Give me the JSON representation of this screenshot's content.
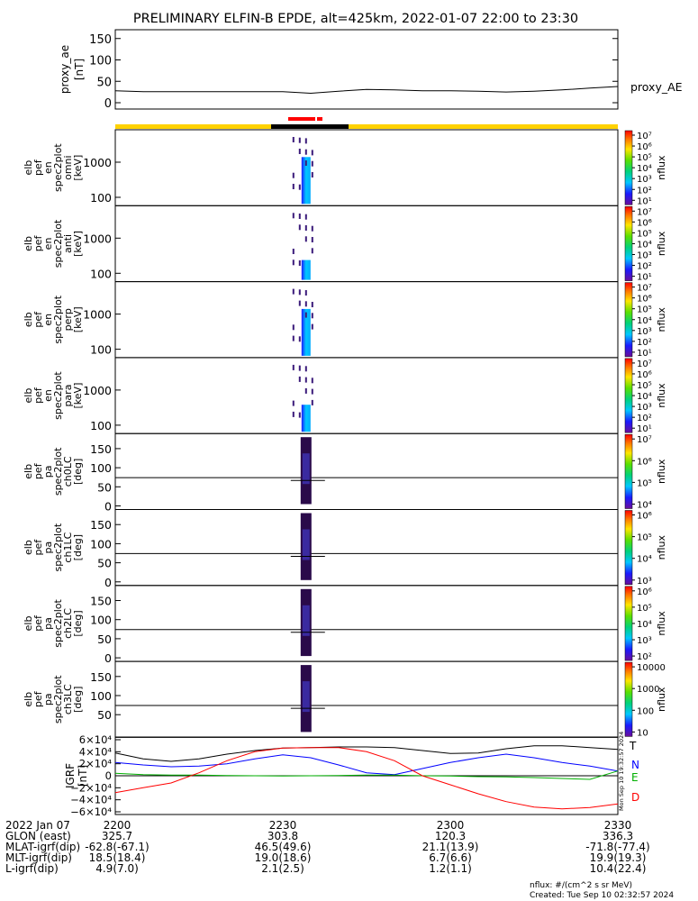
{
  "title": "PRELIMINARY ELFIN-B EPDE, alt=425km, 2022-01-07 22:00 to 23:30",
  "colors": {
    "frame": "#000000",
    "yellow_bar": "#ffd200",
    "black_bar": "#000000",
    "red_bar": "#ff0000",
    "grf_T": "#000000",
    "grf_N": "#0000ff",
    "grf_E": "#00b000",
    "grf_D": "#ff0000"
  },
  "chart_data": [
    {
      "type": "line",
      "panel": "proxy_ae",
      "ylabel": "proxy_ae [nT]",
      "yticks": [
        "150",
        "100",
        "50",
        "0"
      ],
      "ylim": [
        0,
        160
      ],
      "series_label": "proxy_AE",
      "x": [
        2200,
        2205,
        2210,
        2215,
        2220,
        2225,
        2230,
        2235,
        2240,
        2245,
        2250,
        2255,
        2300,
        2305,
        2310,
        2315,
        2320,
        2325,
        2330
      ],
      "values": [
        28,
        26,
        26,
        26,
        26,
        26,
        26,
        22,
        27,
        31,
        30,
        28,
        28,
        27,
        25,
        27,
        30,
        34,
        38
      ]
    },
    {
      "type": "heatmap",
      "panel": "spec_omni",
      "ylabel": [
        "elb",
        "pef",
        "en",
        "spec2plot",
        "omni",
        "[keV]"
      ],
      "yticks": [
        "1000",
        "100"
      ],
      "colorbar_title": "nflux",
      "colorbar_ticks": [
        "10^7",
        "10^6",
        "10^5",
        "10^4",
        "10^3",
        "10^2",
        "10^1"
      ]
    },
    {
      "type": "heatmap",
      "panel": "spec_anti",
      "ylabel": [
        "elb",
        "pef",
        "en",
        "spec2plot",
        "anti",
        "[keV]"
      ],
      "yticks": [
        "1000",
        "100"
      ],
      "colorbar_title": "nflux",
      "colorbar_ticks": [
        "10^7",
        "10^6",
        "10^5",
        "10^4",
        "10^3",
        "10^2",
        "10^1"
      ]
    },
    {
      "type": "heatmap",
      "panel": "spec_perp",
      "ylabel": [
        "elb",
        "pef",
        "en",
        "spec2plot",
        "perp",
        "[keV]"
      ],
      "yticks": [
        "1000",
        "100"
      ],
      "colorbar_title": "nflux",
      "colorbar_ticks": [
        "10^7",
        "10^6",
        "10^5",
        "10^4",
        "10^3",
        "10^2",
        "10^1"
      ]
    },
    {
      "type": "heatmap",
      "panel": "spec_para",
      "ylabel": [
        "elb",
        "pef",
        "en",
        "spec2plot",
        "para",
        "[keV]"
      ],
      "yticks": [
        "1000",
        "100"
      ],
      "colorbar_title": "nflux",
      "colorbar_ticks": [
        "10^7",
        "10^6",
        "10^5",
        "10^4",
        "10^3",
        "10^2",
        "10^1"
      ]
    },
    {
      "type": "heatmap",
      "panel": "pa_ch0LC",
      "ylabel": [
        "elb",
        "pef",
        "pa",
        "spec2plot",
        "ch0LC",
        "[deg]"
      ],
      "yticks": [
        "150",
        "100",
        "50",
        "0"
      ],
      "colorbar_title": "nflux",
      "colorbar_ticks": [
        "10^7",
        "10^6",
        "10^5",
        "10^4"
      ]
    },
    {
      "type": "heatmap",
      "panel": "pa_ch1LC",
      "ylabel": [
        "elb",
        "pef",
        "pa",
        "spec2plot",
        "ch1LC",
        "[deg]"
      ],
      "yticks": [
        "150",
        "100",
        "50",
        "0"
      ],
      "colorbar_title": "nflux",
      "colorbar_ticks": [
        "10^6",
        "10^5",
        "10^4",
        "10^3"
      ]
    },
    {
      "type": "heatmap",
      "panel": "pa_ch2LC",
      "ylabel": [
        "elb",
        "pef",
        "pa",
        "spec2plot",
        "ch2LC",
        "[deg]"
      ],
      "yticks": [
        "150",
        "100",
        "50",
        "0"
      ],
      "colorbar_title": "nflux",
      "colorbar_ticks": [
        "10^6",
        "10^5",
        "10^4",
        "10^3",
        "10^2"
      ]
    },
    {
      "type": "heatmap",
      "panel": "pa_ch3LC",
      "ylabel": [
        "elb",
        "pef",
        "pa",
        "spec2plot",
        "ch3LC",
        "[deg]"
      ],
      "yticks": [
        "150",
        "100",
        "50"
      ],
      "colorbar_title": "nflux",
      "colorbar_ticks": [
        "10000",
        "1000",
        "100",
        "10"
      ]
    },
    {
      "type": "line",
      "panel": "IGRF",
      "ylabel": "IGRF [nT]",
      "yticks": [
        "6×10⁴",
        "4×10⁴",
        "2×10⁴",
        "0",
        "−2×10⁴",
        "−4×10⁴",
        "−6×10⁴"
      ],
      "ylim": [
        -60000,
        60000
      ],
      "x": [
        2200,
        2205,
        2210,
        2215,
        2220,
        2225,
        2230,
        2235,
        2240,
        2245,
        2250,
        2255,
        2300,
        2305,
        2310,
        2315,
        2320,
        2325,
        2330
      ],
      "series": [
        {
          "name": "T",
          "values": [
            38000,
            28000,
            24000,
            28000,
            36000,
            42000,
            46000,
            47000,
            48000,
            48000,
            47000,
            42000,
            37000,
            38000,
            45000,
            50000,
            50000,
            47000,
            44000
          ]
        },
        {
          "name": "N",
          "values": [
            22000,
            18000,
            15000,
            16000,
            20000,
            28000,
            35000,
            30000,
            18000,
            5000,
            2000,
            12000,
            22000,
            30000,
            36000,
            30000,
            22000,
            16000,
            8000
          ]
        },
        {
          "name": "E",
          "values": [
            4000,
            2000,
            1000,
            1000,
            500,
            0,
            -500,
            0,
            500,
            1000,
            1000,
            0,
            -500,
            -1500,
            -2000,
            -3000,
            -4500,
            -6000,
            8000
          ]
        },
        {
          "name": "D",
          "values": [
            -28000,
            -20000,
            -12000,
            5000,
            25000,
            40000,
            46000,
            47000,
            47000,
            40000,
            25000,
            0,
            -15000,
            -30000,
            -43000,
            -52000,
            -55000,
            -53000,
            -47000
          ]
        }
      ],
      "side_note": "Mon Sep 10 19:32:57 2024"
    }
  ],
  "x_ticks": [
    "2200",
    "2230",
    "2300",
    "2330"
  ],
  "footer_rows": [
    {
      "label": "2022 Jan 07",
      "values": [
        "2200",
        "2230",
        "2300",
        "2330"
      ]
    },
    {
      "label": "GLON (east)",
      "values": [
        "325.7",
        "303.8",
        "120.3",
        "336.3"
      ]
    },
    {
      "label": "MLAT-igrf(dip)",
      "values": [
        "-62.8(-67.1)",
        "46.5(49.6)",
        "21.1(13.9)",
        "-71.8(-77.4)"
      ]
    },
    {
      "label": "MLT-igrf(dip)",
      "values": [
        "18.5(18.4)",
        "19.0(18.6)",
        "6.7(6.6)",
        "19.9(19.3)"
      ]
    },
    {
      "label": "L-igrf(dip)",
      "values": [
        "4.9(7.0)",
        "2.1(2.5)",
        "1.2(1.1)",
        "10.4(22.4)"
      ]
    }
  ],
  "footnote_units": "nflux: #/(cm^2 s sr MeV)",
  "footnote_created": "Created: Tue Sep 10 02:32:57 2024"
}
